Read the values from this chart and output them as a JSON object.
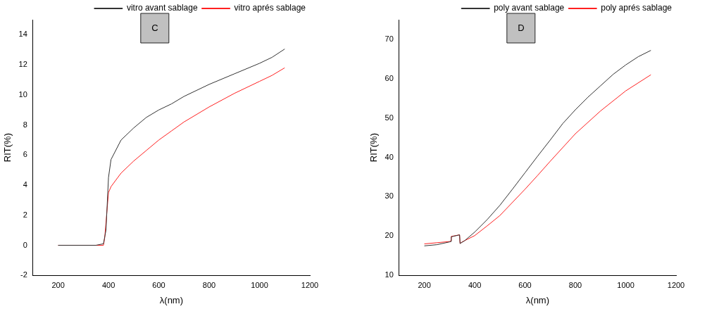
{
  "chart_data": [
    {
      "type": "line",
      "xlabel": "λ(nm)",
      "ylabel": "RIT(%)",
      "annotations": [
        "C"
      ],
      "xlim": [
        100,
        1200
      ],
      "xticks": [
        200,
        400,
        600,
        800,
        1000,
        1200
      ],
      "ylim": [
        -2,
        15
      ],
      "yticks": [
        -2,
        0,
        2,
        4,
        6,
        8,
        10,
        12,
        14
      ],
      "grid": false,
      "legend": "top right",
      "marker": "none",
      "line_style": "solid",
      "series": [
        {
          "name": "vitro avant sablage",
          "color": "#333333",
          "x": [
            200,
            350,
            380,
            390,
            400,
            410,
            450,
            500,
            550,
            600,
            650,
            700,
            800,
            900,
            1000,
            1050,
            1100
          ],
          "values": [
            0,
            0,
            0.1,
            1,
            4.5,
            5.7,
            7,
            7.8,
            8.5,
            9,
            9.4,
            9.9,
            10.7,
            11.4,
            12.1,
            12.5,
            13.05
          ]
        },
        {
          "name": "vitro aprés sablage",
          "color": "#ff2020",
          "x": [
            200,
            380,
            385,
            395,
            400,
            410,
            450,
            500,
            550,
            600,
            650,
            700,
            800,
            900,
            1000,
            1050,
            1100
          ],
          "values": [
            0,
            0,
            0.5,
            2.5,
            3.5,
            3.9,
            4.8,
            5.6,
            6.3,
            7,
            7.6,
            8.2,
            9.2,
            10.1,
            10.9,
            11.3,
            11.8
          ]
        }
      ]
    },
    {
      "type": "line",
      "xlabel": "λ(nm)",
      "ylabel": "RIT(%)",
      "annotations": [
        "D"
      ],
      "xlim": [
        100,
        1200
      ],
      "xticks": [
        200,
        400,
        600,
        800,
        1000,
        1200
      ],
      "ylim": [
        10,
        75
      ],
      "yticks": [
        10,
        20,
        30,
        40,
        50,
        60,
        70
      ],
      "grid": false,
      "legend": "top right",
      "marker": "none",
      "line_style": "solid",
      "series": [
        {
          "name": "poly avant sablage",
          "color": "#333333",
          "x": [
            200,
            250,
            300,
            305,
            307,
            340,
            342,
            360,
            400,
            450,
            500,
            550,
            600,
            650,
            700,
            750,
            800,
            850,
            900,
            950,
            1000,
            1050,
            1100
          ],
          "values": [
            17.5,
            17.8,
            18.5,
            18.6,
            19.8,
            20.3,
            18.1,
            18.8,
            21,
            24.2,
            27.8,
            31.9,
            36.1,
            40.3,
            44.4,
            48.6,
            52.1,
            55.3,
            58.2,
            61.1,
            63.5,
            65.6,
            67.2
          ]
        },
        {
          "name": "poly aprés sablage",
          "color": "#ff2020",
          "x": [
            200,
            250,
            300,
            305,
            307,
            340,
            342,
            350,
            400,
            450,
            500,
            600,
            650,
            700,
            800,
            900,
            1000,
            1100
          ],
          "values": [
            18,
            18.3,
            18.6,
            18.8,
            19.9,
            20.3,
            18.1,
            18.5,
            20.1,
            22.6,
            25.2,
            31.9,
            35.4,
            39,
            46,
            51.8,
            56.9,
            61
          ]
        }
      ]
    }
  ]
}
